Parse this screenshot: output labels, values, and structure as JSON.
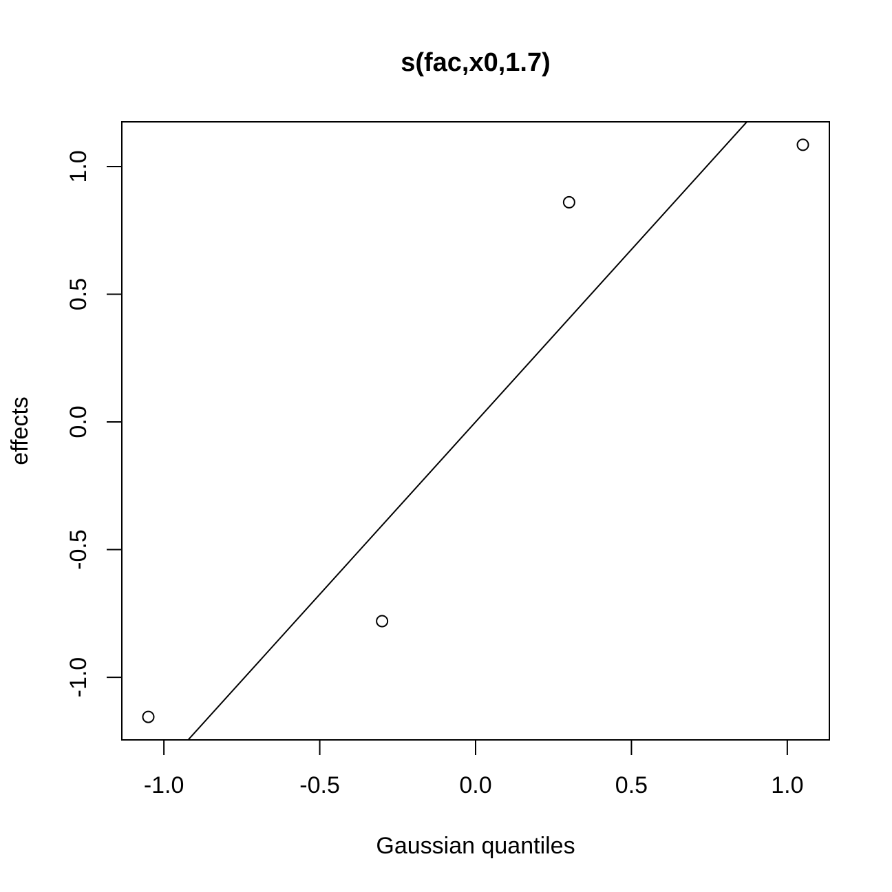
{
  "chart_data": {
    "type": "scatter",
    "title": "s(fac,x0,1.7)",
    "xlabel": "Gaussian quantiles",
    "ylabel": "effects",
    "xlim": [
      -1.135,
      1.135
    ],
    "ylim": [
      -1.245,
      1.175
    ],
    "x_ticks": [
      -1.0,
      -0.5,
      0.0,
      0.5,
      1.0
    ],
    "x_tick_labels": [
      "-1.0",
      "-0.5",
      "0.0",
      "0.5",
      "1.0"
    ],
    "y_ticks": [
      -1.0,
      -0.5,
      0.0,
      0.5,
      1.0
    ],
    "y_tick_labels": [
      "-1.0",
      "-0.5",
      "0.0",
      "0.5",
      "1.0"
    ],
    "points": [
      {
        "x": -1.05,
        "y": -1.155
      },
      {
        "x": -0.3,
        "y": -0.78
      },
      {
        "x": 0.3,
        "y": 0.86
      },
      {
        "x": 1.05,
        "y": 1.085
      }
    ],
    "reference_line": {
      "intercept": 0.0,
      "slope": 1.35
    },
    "grid": false,
    "legend": "none",
    "colors": {
      "points": "#000000",
      "line": "#000000",
      "frame": "#000000"
    }
  }
}
